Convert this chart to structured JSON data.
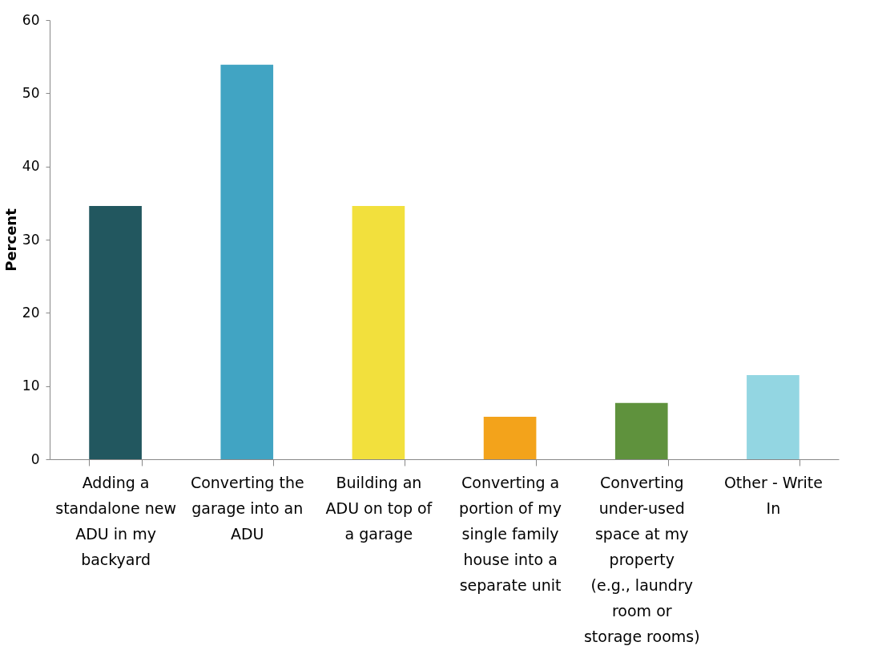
{
  "chart_data": {
    "type": "bar",
    "ylabel": "Percent",
    "categories": [
      "Adding a standalone new ADU in my backyard",
      "Converting the garage into an ADU",
      "Building an ADU on top of a garage",
      "Converting a portion of my single family house into a separate unit",
      "Converting under-used space at my property (e.g., laundry room or storage rooms)",
      "Other - Write In"
    ],
    "values": [
      34.6,
      53.9,
      34.6,
      5.8,
      7.7,
      11.5
    ],
    "colors": [
      "#22575f",
      "#41a4c3",
      "#f2e03d",
      "#f3a31b",
      "#5f923d",
      "#93d6e2"
    ],
    "ylim": [
      0,
      60
    ],
    "yticks": [
      0,
      10,
      20,
      30,
      40,
      50,
      60
    ],
    "grid": false
  }
}
